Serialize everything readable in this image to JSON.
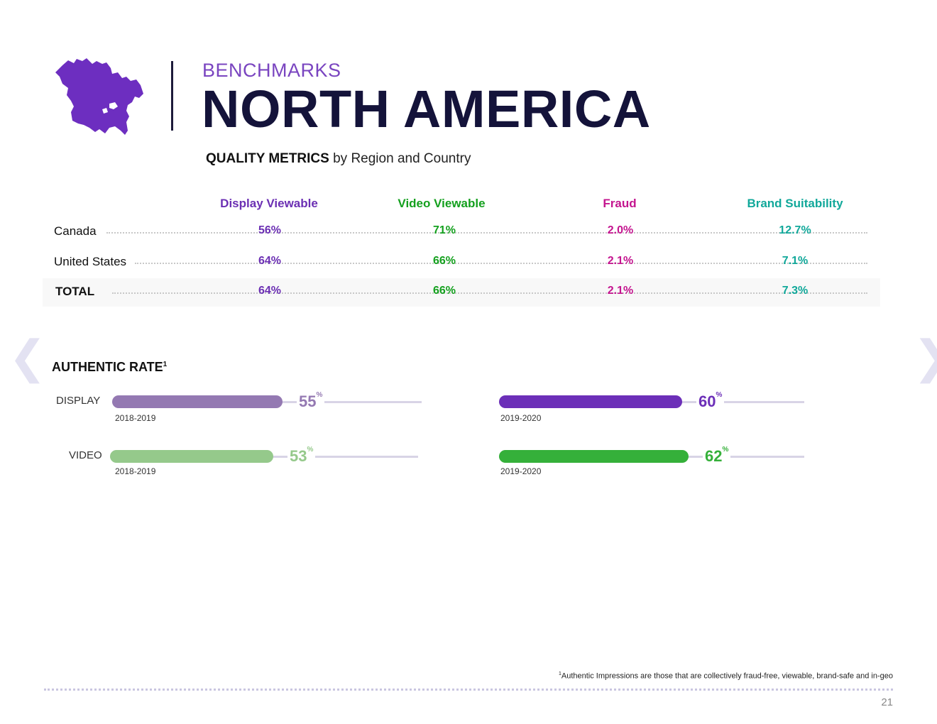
{
  "header": {
    "kicker": "BENCHMARKS",
    "title": "NORTH AMERICA",
    "subtitle_bold": "QUALITY METRICS",
    "subtitle_rest": " by Region and Country",
    "map_color": "#6d2ec0"
  },
  "table": {
    "columns": [
      {
        "label": "Display Viewable",
        "color": "#6b2fb3"
      },
      {
        "label": "Video Viewable",
        "color": "#14a01e"
      },
      {
        "label": "Fraud",
        "color": "#c4158f"
      },
      {
        "label": "Brand Suitability",
        "color": "#11a89a"
      }
    ],
    "rows": [
      {
        "label": "Canada",
        "values": [
          "56%",
          "71%",
          "2.0%",
          "12.7%"
        ]
      },
      {
        "label": "United States",
        "values": [
          "64%",
          "66%",
          "2.1%",
          "7.1%"
        ]
      },
      {
        "label": "TOTAL",
        "values": [
          "64%",
          "66%",
          "2.1%",
          "7.3%"
        ]
      }
    ]
  },
  "authentic_rate": {
    "title": "AUTHENTIC RATE",
    "title_sup": "1",
    "display_label": "DISPLAY",
    "video_label": "VIDEO",
    "bars": [
      {
        "name": "display-2018-2019",
        "year": "2018-2019",
        "value": "55",
        "unit": "%",
        "fraction": 0.55,
        "color": "#9479b2"
      },
      {
        "name": "display-2019-2020",
        "year": "2019-2020",
        "value": "60",
        "unit": "%",
        "fraction": 0.6,
        "color": "#6c2fb8"
      },
      {
        "name": "video-2018-2019",
        "year": "2018-2019",
        "value": "53",
        "unit": "%",
        "fraction": 0.53,
        "color": "#95c98b"
      },
      {
        "name": "video-2019-2020",
        "year": "2019-2020",
        "value": "62",
        "unit": "%",
        "fraction": 0.62,
        "color": "#35b03a"
      }
    ]
  },
  "nav": {
    "prev": "❮",
    "next": "❯"
  },
  "footer": {
    "footnote_sup": "1",
    "footnote": "Authentic Impressions are those that are collectively fraud-free, viewable, brand-safe and in-geo",
    "page_number": "21"
  }
}
